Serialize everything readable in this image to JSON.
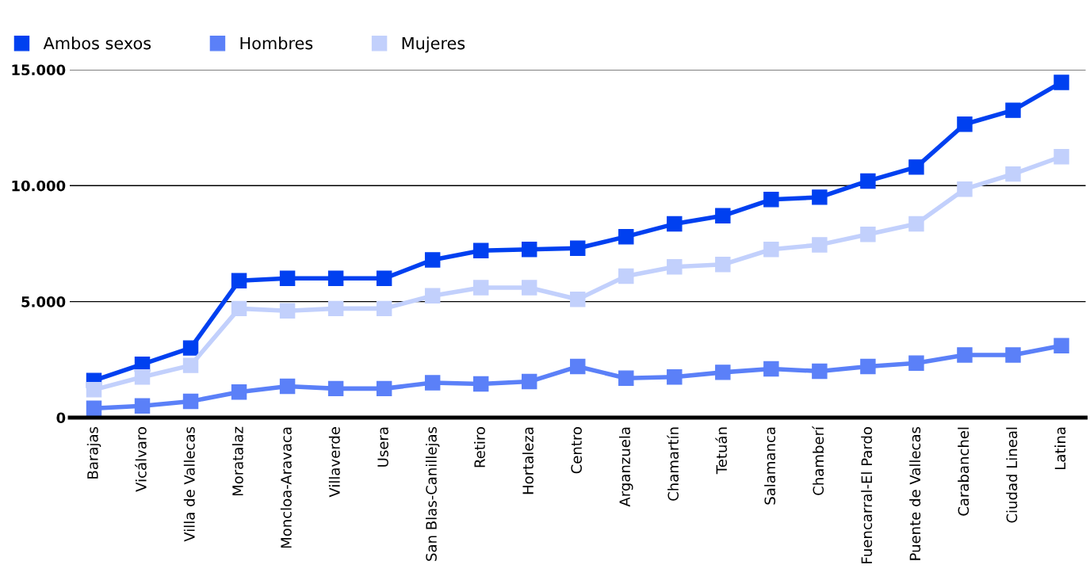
{
  "chart_data": {
    "type": "line",
    "categories": [
      "Barajas",
      "Vicálvaro",
      "Villa de Vallecas",
      "Moratalaz",
      "Moncloa-Aravaca",
      "Villaverde",
      "Usera",
      "San Blas-Canillejas",
      "Retiro",
      "Hortaleza",
      "Centro",
      "Arganzuela",
      "Chamartín",
      "Tetuán",
      "Salamanca",
      "Chamberí",
      "Fuencarral-El Pardo",
      "Puente de Vallecas",
      "Carabanchel",
      "Ciudad Lineal",
      "Latina"
    ],
    "series": [
      {
        "name": "Ambos sexos",
        "color": "#0040f0",
        "values": [
          1600,
          2300,
          3000,
          5900,
          6000,
          6000,
          6000,
          6800,
          7200,
          7250,
          7300,
          7800,
          8350,
          8700,
          9400,
          9500,
          10200,
          10800,
          12650,
          13250,
          14450
        ]
      },
      {
        "name": "Hombres",
        "color": "#5b80f8",
        "values": [
          400,
          500,
          700,
          1100,
          1350,
          1250,
          1250,
          1500,
          1450,
          1550,
          2200,
          1700,
          1750,
          1950,
          2100,
          2000,
          2200,
          2350,
          2700,
          2700,
          3100
        ]
      },
      {
        "name": "Mujeres",
        "color": "#c2d0fc",
        "values": [
          1200,
          1750,
          2250,
          4700,
          4600,
          4700,
          4700,
          5250,
          5600,
          5600,
          5100,
          6100,
          6500,
          6600,
          7250,
          7450,
          7900,
          8350,
          9850,
          10500,
          11250
        ]
      }
    ],
    "ylim": [
      0,
      15000
    ],
    "yticks": [
      {
        "value": 0,
        "label": "0"
      },
      {
        "value": 5000,
        "label": "5.000"
      },
      {
        "value": 10000,
        "label": "10.000"
      },
      {
        "value": 15000,
        "label": "15.000"
      }
    ],
    "grid": "y",
    "legend": "top left",
    "marker": "square",
    "line_style": "solid"
  }
}
